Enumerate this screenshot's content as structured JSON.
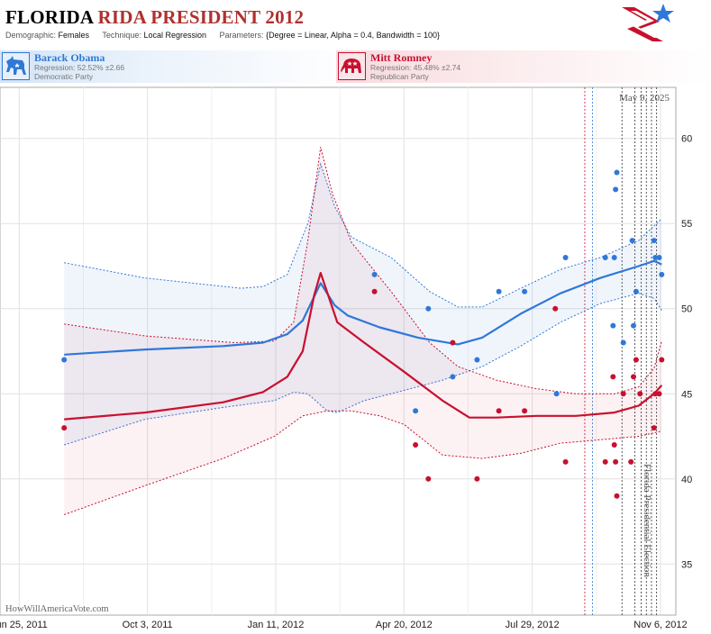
{
  "header": {
    "title_state": "FLORIDA",
    "title_rest": "RIDA PRESIDENT 2012",
    "demographic_label": "Demographic:",
    "demographic_value": "Females",
    "technique_label": "Technique:",
    "technique_value": "Local Regression",
    "parameters_label": "Parameters:",
    "parameters_value": "{Degree = Linear, Alpha = 0.4, Bandwidth = 100}"
  },
  "candidates": [
    {
      "name": "Barack Obama",
      "regression": "Regression: 52.52% ±2.66",
      "party": "Democratic Party",
      "color": "#2f78d8",
      "icon": "donkey-icon"
    },
    {
      "name": "Mitt Romney",
      "regression": "Regression: 45.48% ±2.74",
      "party": "Republican Party",
      "color": "#c8102e",
      "icon": "elephant-icon"
    }
  ],
  "chart_data": {
    "type": "scatter",
    "date_label": "May 9, 2025",
    "election_label": "Florida Presidential Election",
    "watermark": "HowWillAmericaVote.com",
    "x_ticks": [
      "Jun 25, 2011",
      "Oct 3, 2011",
      "Jan 11, 2012",
      "Apr 20, 2012",
      "Jul 29, 2012",
      "Nov 6, 2012"
    ],
    "xlim": [
      "2011-06-10",
      "2012-11-18"
    ],
    "ylim": [
      32,
      63
    ],
    "y_ticks": [
      35,
      40,
      45,
      50,
      55,
      60
    ],
    "grid": true,
    "poll_dates": [
      "2012-09-08",
      "2012-09-14",
      "2012-10-07",
      "2012-10-17",
      "2012-10-22",
      "2012-10-26",
      "2012-10-30",
      "2012-11-03"
    ],
    "series": [
      {
        "name": "Barack Obama",
        "color": "#2f78d8",
        "points": [
          [
            "2011-07-30",
            47
          ],
          [
            "2012-03-28",
            52
          ],
          [
            "2012-04-29",
            44
          ],
          [
            "2012-05-09",
            50
          ],
          [
            "2012-05-28",
            46
          ],
          [
            "2012-06-16",
            47
          ],
          [
            "2012-07-03",
            51
          ],
          [
            "2012-07-23",
            51
          ],
          [
            "2012-08-17",
            45
          ],
          [
            "2012-08-24",
            53
          ],
          [
            "2012-09-24",
            53
          ],
          [
            "2012-09-30",
            49
          ],
          [
            "2012-10-01",
            53
          ],
          [
            "2012-10-02",
            57
          ],
          [
            "2012-10-03",
            58
          ],
          [
            "2012-10-08",
            48
          ],
          [
            "2012-10-15",
            54
          ],
          [
            "2012-10-16",
            49
          ],
          [
            "2012-10-18",
            51
          ],
          [
            "2012-11-01",
            54
          ],
          [
            "2012-11-02",
            53
          ],
          [
            "2012-11-05",
            53
          ],
          [
            "2012-11-07",
            52
          ]
        ],
        "trend": [
          [
            "2011-07-30",
            47.3
          ],
          [
            "2011-10-01",
            47.6
          ],
          [
            "2011-12-01",
            47.8
          ],
          [
            "2012-01-01",
            48.0
          ],
          [
            "2012-01-20",
            48.5
          ],
          [
            "2012-02-01",
            49.3
          ],
          [
            "2012-02-15",
            51.5
          ],
          [
            "2012-02-26",
            50.2
          ],
          [
            "2012-03-07",
            49.6
          ],
          [
            "2012-04-01",
            48.9
          ],
          [
            "2012-05-01",
            48.3
          ],
          [
            "2012-06-01",
            47.9
          ],
          [
            "2012-06-20",
            48.3
          ],
          [
            "2012-07-20",
            49.7
          ],
          [
            "2012-08-20",
            50.9
          ],
          [
            "2012-09-20",
            51.8
          ],
          [
            "2012-10-20",
            52.5
          ],
          [
            "2012-11-01",
            52.8
          ],
          [
            "2012-11-07",
            52.6
          ]
        ],
        "upper": [
          [
            "2011-07-30",
            52.7
          ],
          [
            "2011-10-01",
            51.8
          ],
          [
            "2011-12-15",
            51.2
          ],
          [
            "2012-01-01",
            51.3
          ],
          [
            "2012-01-20",
            52.0
          ],
          [
            "2012-02-05",
            55.0
          ],
          [
            "2012-02-15",
            58.5
          ],
          [
            "2012-02-26",
            56.0
          ],
          [
            "2012-03-10",
            54.2
          ],
          [
            "2012-04-10",
            53.0
          ],
          [
            "2012-05-10",
            51.0
          ],
          [
            "2012-06-01",
            50.1
          ],
          [
            "2012-06-20",
            50.1
          ],
          [
            "2012-07-20",
            51.2
          ],
          [
            "2012-08-20",
            52.3
          ],
          [
            "2012-09-20",
            53.0
          ],
          [
            "2012-10-20",
            54.0
          ],
          [
            "2012-11-07",
            55.3
          ]
        ],
        "lower": [
          [
            "2011-07-30",
            42.0
          ],
          [
            "2011-10-01",
            43.5
          ],
          [
            "2011-12-01",
            44.2
          ],
          [
            "2012-01-10",
            44.6
          ],
          [
            "2012-01-25",
            45.1
          ],
          [
            "2012-02-05",
            45.0
          ],
          [
            "2012-02-20",
            44.0
          ],
          [
            "2012-02-28",
            43.9
          ],
          [
            "2012-03-20",
            44.6
          ],
          [
            "2012-04-20",
            45.2
          ],
          [
            "2012-05-20",
            45.8
          ],
          [
            "2012-06-20",
            46.6
          ],
          [
            "2012-07-20",
            47.8
          ],
          [
            "2012-08-20",
            49.2
          ],
          [
            "2012-09-20",
            50.3
          ],
          [
            "2012-10-20",
            50.9
          ],
          [
            "2012-11-01",
            50.6
          ],
          [
            "2012-11-07",
            49.9
          ]
        ]
      },
      {
        "name": "Mitt Romney",
        "color": "#c8102e",
        "points": [
          [
            "2011-07-30",
            43
          ],
          [
            "2012-03-28",
            51
          ],
          [
            "2012-04-29",
            42
          ],
          [
            "2012-05-09",
            40
          ],
          [
            "2012-05-28",
            48
          ],
          [
            "2012-06-16",
            40
          ],
          [
            "2012-07-03",
            44
          ],
          [
            "2012-07-23",
            44
          ],
          [
            "2012-08-16",
            50
          ],
          [
            "2012-08-24",
            41
          ],
          [
            "2012-09-24",
            41
          ],
          [
            "2012-09-30",
            46
          ],
          [
            "2012-10-01",
            42
          ],
          [
            "2012-10-02",
            41
          ],
          [
            "2012-10-03",
            39
          ],
          [
            "2012-10-08",
            45
          ],
          [
            "2012-10-14",
            41
          ],
          [
            "2012-10-16",
            46
          ],
          [
            "2012-10-18",
            47
          ],
          [
            "2012-10-21",
            45
          ],
          [
            "2012-11-01",
            43
          ],
          [
            "2012-11-02",
            45
          ],
          [
            "2012-11-05",
            45
          ],
          [
            "2012-11-07",
            47
          ]
        ],
        "trend": [
          [
            "2011-07-30",
            43.5
          ],
          [
            "2011-10-01",
            43.9
          ],
          [
            "2011-12-01",
            44.5
          ],
          [
            "2012-01-01",
            45.1
          ],
          [
            "2012-01-20",
            46.0
          ],
          [
            "2012-02-01",
            47.5
          ],
          [
            "2012-02-10",
            50.8
          ],
          [
            "2012-02-15",
            52.1
          ],
          [
            "2012-02-28",
            49.2
          ],
          [
            "2012-03-20",
            48.0
          ],
          [
            "2012-04-20",
            46.3
          ],
          [
            "2012-05-20",
            44.6
          ],
          [
            "2012-06-10",
            43.6
          ],
          [
            "2012-07-01",
            43.6
          ],
          [
            "2012-08-01",
            43.7
          ],
          [
            "2012-09-01",
            43.7
          ],
          [
            "2012-10-01",
            43.9
          ],
          [
            "2012-10-20",
            44.3
          ],
          [
            "2012-11-01",
            45.0
          ],
          [
            "2012-11-07",
            45.5
          ]
        ],
        "upper": [
          [
            "2011-07-30",
            49.1
          ],
          [
            "2011-10-01",
            48.4
          ],
          [
            "2011-12-10",
            48.0
          ],
          [
            "2012-01-10",
            48.1
          ],
          [
            "2012-01-25",
            49.2
          ],
          [
            "2012-02-05",
            54.0
          ],
          [
            "2012-02-15",
            59.5
          ],
          [
            "2012-02-24",
            56.8
          ],
          [
            "2012-03-10",
            53.9
          ],
          [
            "2012-04-10",
            51.0
          ],
          [
            "2012-05-10",
            48.0
          ],
          [
            "2012-06-01",
            46.6
          ],
          [
            "2012-07-01",
            45.8
          ],
          [
            "2012-08-01",
            45.3
          ],
          [
            "2012-09-01",
            45.0
          ],
          [
            "2012-10-01",
            45.0
          ],
          [
            "2012-10-20",
            45.4
          ],
          [
            "2012-11-01",
            46.5
          ],
          [
            "2012-11-07",
            48.1
          ]
        ],
        "lower": [
          [
            "2011-07-30",
            37.9
          ],
          [
            "2011-10-01",
            39.6
          ],
          [
            "2011-12-01",
            41.2
          ],
          [
            "2012-01-10",
            42.5
          ],
          [
            "2012-02-01",
            43.7
          ],
          [
            "2012-02-20",
            44.0
          ],
          [
            "2012-03-10",
            44.0
          ],
          [
            "2012-04-01",
            43.7
          ],
          [
            "2012-04-20",
            43.2
          ],
          [
            "2012-05-20",
            41.4
          ],
          [
            "2012-06-20",
            41.2
          ],
          [
            "2012-07-20",
            41.5
          ],
          [
            "2012-08-20",
            42.1
          ],
          [
            "2012-09-20",
            42.3
          ],
          [
            "2012-10-20",
            42.5
          ],
          [
            "2012-11-07",
            42.8
          ]
        ]
      }
    ]
  }
}
